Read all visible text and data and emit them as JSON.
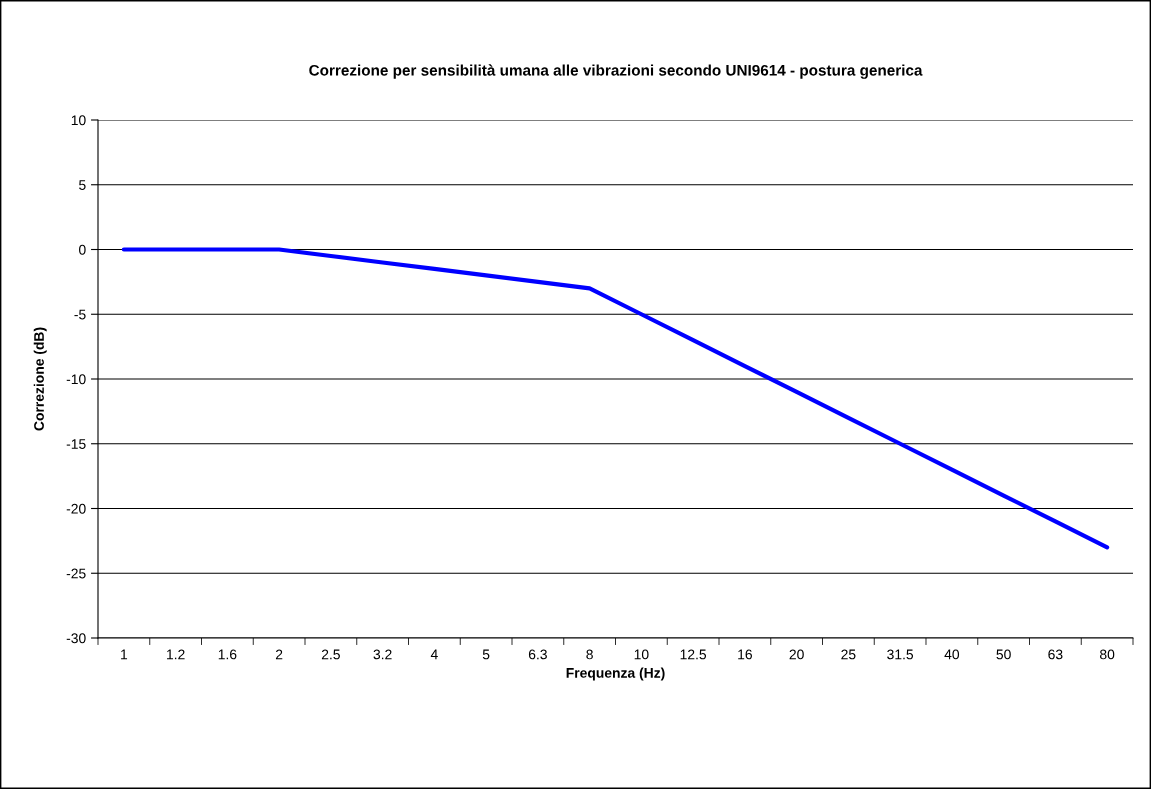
{
  "chart_data": {
    "type": "line",
    "title": "Correzione per sensibilità umana alle vibrazioni secondo UNI9614 - postura generica",
    "xlabel": "Frequenza (Hz)",
    "ylabel": "Correzione (dB)",
    "categories": [
      "1",
      "1.2",
      "1.6",
      "2",
      "2.5",
      "3.2",
      "4",
      "5",
      "6.3",
      "8",
      "10",
      "12.5",
      "16",
      "20",
      "25",
      "31.5",
      "40",
      "50",
      "63",
      "80"
    ],
    "series": [
      {
        "color": "#0000ff",
        "values": [
          0,
          0,
          0,
          0,
          -0.5,
          -1,
          -1.5,
          -2,
          -2.5,
          -3,
          -5,
          -7,
          -9,
          -11,
          -13,
          -15,
          -17,
          -19,
          -21,
          -23
        ]
      }
    ],
    "ylim": [
      -30,
      10
    ],
    "yticks": [
      -30,
      -25,
      -20,
      -15,
      -10,
      -5,
      0,
      5,
      10
    ],
    "grid": "y",
    "legend": false,
    "marker": "none",
    "line_style": "solid"
  }
}
